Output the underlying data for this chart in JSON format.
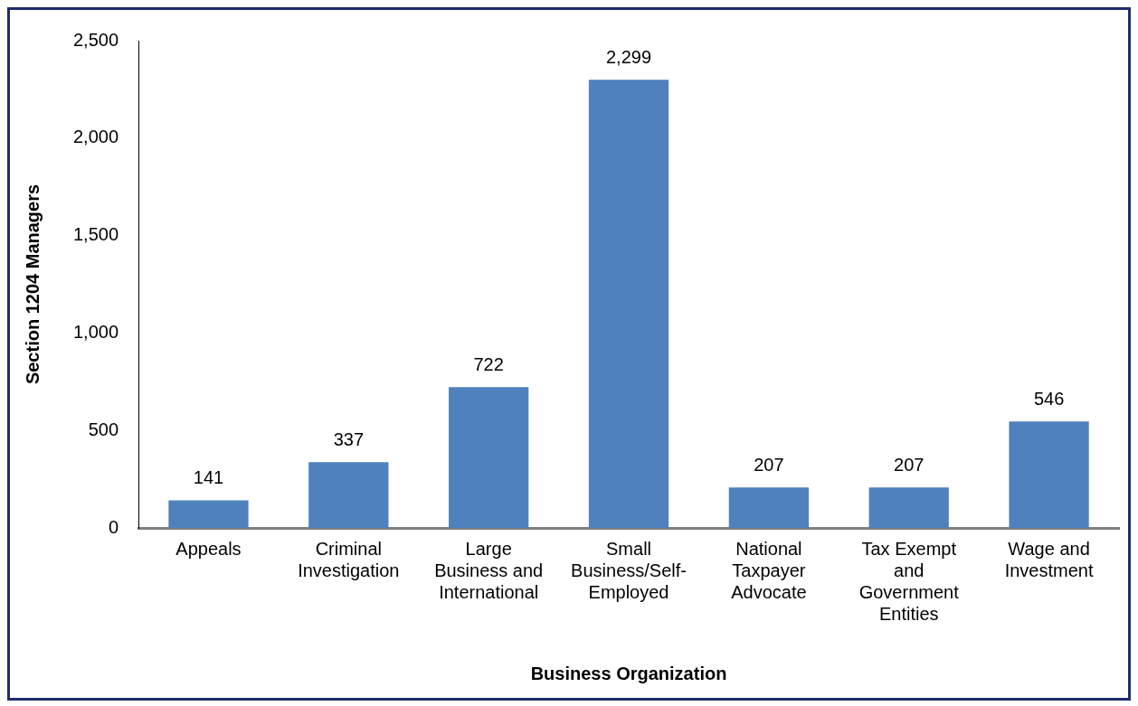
{
  "chart_data": {
    "type": "bar",
    "xlabel": "Business Organization",
    "ylabel": "Section 1204 Managers",
    "categories": [
      "Appeals",
      "Criminal Investigation",
      "Large Business and International",
      "Small Business/Self-Employed",
      "National Taxpayer Advocate",
      "Tax Exempt and Government Entities",
      "Wage and Investment"
    ],
    "values": [
      141,
      337,
      722,
      2299,
      207,
      207,
      546
    ],
    "color": "#4f81bd",
    "ylim": [
      0,
      2500
    ],
    "yticks": [
      0,
      500,
      {
        "value": 1000,
        "label": "1,000"
      },
      {
        "value": 1500,
        "label": "1,500"
      },
      {
        "value": 2000,
        "label": "2,000"
      },
      {
        "value": 2500,
        "label": "2,500"
      }
    ],
    "grid": false,
    "legend": false,
    "value_labels": [
      "141",
      "337",
      "722",
      "2,299",
      "207",
      "207",
      "546"
    ]
  }
}
